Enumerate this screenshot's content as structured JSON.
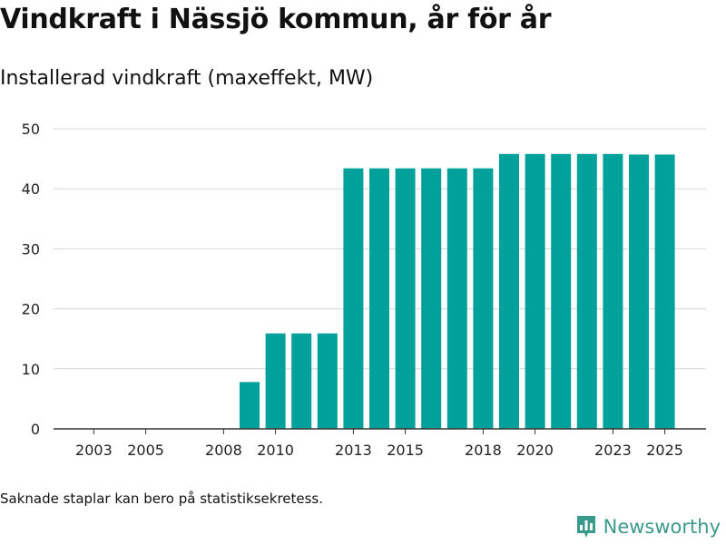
{
  "header": {
    "title": "Vindkraft i Nässjö kommun, år för år",
    "subtitle": "Installerad vindkraft (maxeffekt, MW)"
  },
  "footer": {
    "note": "Saknade staplar kan bero på statistiksekretess.",
    "brand": "Newsworthy"
  },
  "colors": {
    "bar": "#00a19a",
    "grid": "#d4d4d4",
    "axis": "#333333",
    "brand": "#3a9a8c"
  },
  "icons": {
    "brand_logo": "newsworthy-logo-icon"
  },
  "chart_data": {
    "type": "bar",
    "title": "Installerad vindkraft (maxeffekt, MW)",
    "xlabel": "",
    "ylabel": "",
    "ylim": [
      0,
      50
    ],
    "yticks": [
      0,
      10,
      20,
      30,
      40,
      50
    ],
    "xticks": [
      "2003",
      "2005",
      "2008",
      "2010",
      "2013",
      "2015",
      "2018",
      "2020",
      "2023",
      "2025"
    ],
    "grid": true,
    "legend": "none",
    "categories": [
      2002,
      2003,
      2004,
      2005,
      2006,
      2007,
      2008,
      2009,
      2010,
      2011,
      2012,
      2013,
      2014,
      2015,
      2016,
      2017,
      2018,
      2019,
      2020,
      2021,
      2022,
      2023,
      2024,
      2025
    ],
    "values": [
      null,
      null,
      null,
      null,
      null,
      null,
      null,
      7.8,
      15.9,
      15.9,
      15.9,
      43.4,
      43.4,
      43.4,
      43.4,
      43.4,
      43.4,
      45.8,
      45.8,
      45.8,
      45.8,
      45.8,
      45.7,
      45.7
    ]
  }
}
